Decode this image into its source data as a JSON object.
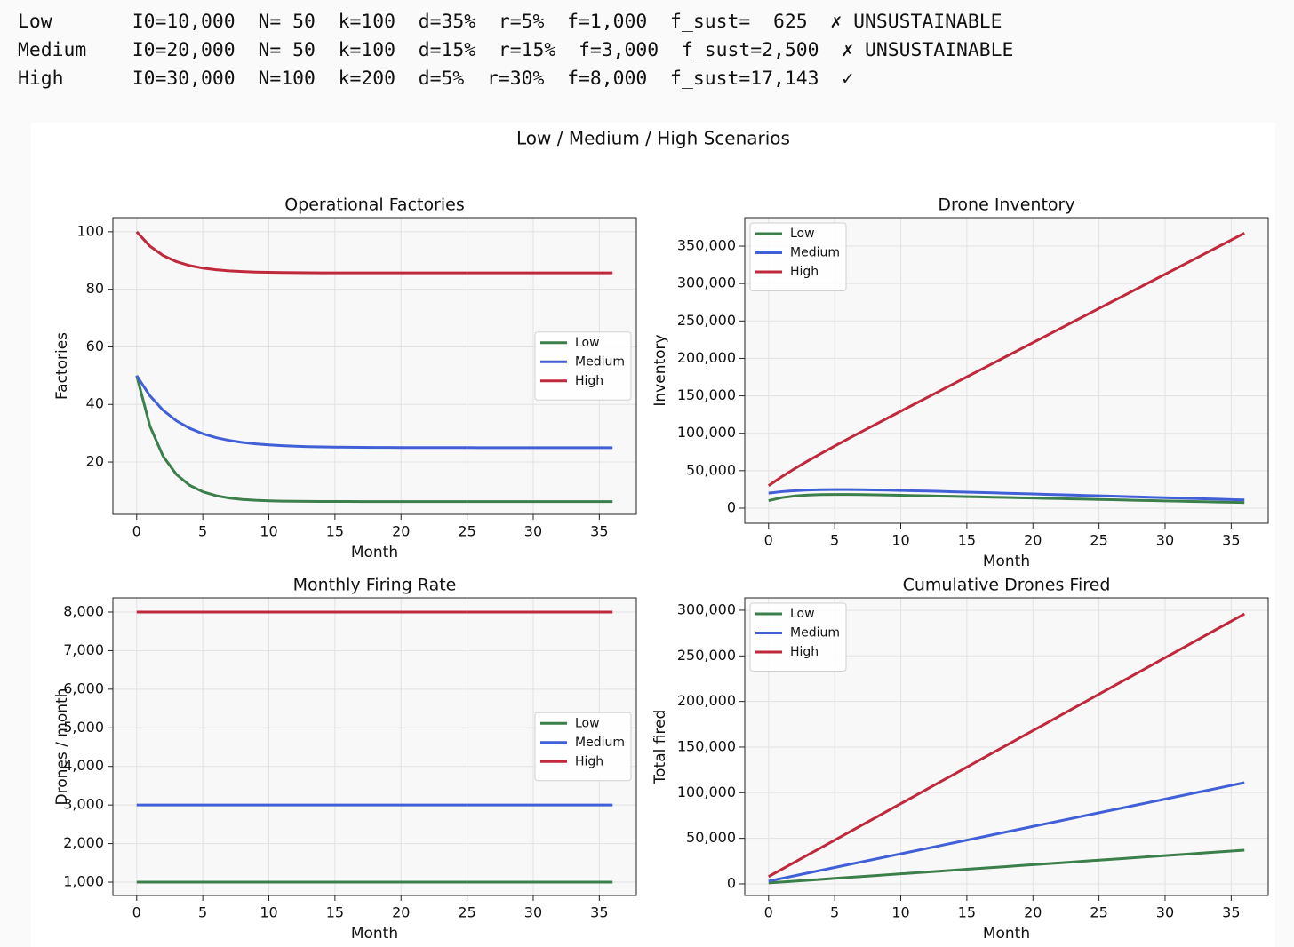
{
  "output_lines": [
    "Low       I0=10,000  N= 50  k=100  d=35%  r=5%  f=1,000  f_sust=  625  ✗ UNSUSTAINABLE",
    "Medium    I0=20,000  N= 50  k=100  d=15%  r=15%  f=3,000  f_sust=2,500  ✗ UNSUSTAINABLE",
    "High      I0=30,000  N=100  k=200  d=5%  r=30%  f=8,000  f_sust=17,143  ✓"
  ],
  "suptitle": "Low / Medium / High Scenarios",
  "chart_data": [
    {
      "type": "line",
      "title": "Operational Factories",
      "x_label": "Month",
      "y_label": "Factories",
      "grid": true,
      "legend": "center right",
      "x": [
        0,
        1,
        2,
        3,
        4,
        5,
        6,
        7,
        8,
        9,
        10,
        11,
        12,
        13,
        14,
        15,
        16,
        17,
        18,
        19,
        20,
        21,
        22,
        23,
        24,
        25,
        26,
        27,
        28,
        29,
        30,
        31,
        32,
        33,
        34,
        35,
        36
      ],
      "xlim": [
        -1.8,
        37.8
      ],
      "xticks": [
        0,
        5,
        10,
        15,
        20,
        25,
        30,
        35
      ],
      "ylim": [
        1.8,
        104.9
      ],
      "yticks": [
        20,
        40,
        60,
        80,
        100
      ],
      "series": [
        {
          "name": "Low",
          "color": "#3b7f4a",
          "values": [
            50,
            32.5,
            22.0,
            15.7,
            11.9,
            9.65,
            8.29,
            7.47,
            6.98,
            6.69,
            6.51,
            6.41,
            6.35,
            6.31,
            6.28,
            6.27,
            6.26,
            6.25,
            6.25,
            6.25,
            6.25,
            6.25,
            6.25,
            6.25,
            6.25,
            6.25,
            6.25,
            6.25,
            6.25,
            6.25,
            6.25,
            6.25,
            6.25,
            6.25,
            6.25,
            6.25,
            6.25
          ]
        },
        {
          "name": "Medium",
          "color": "#4160d8",
          "values": [
            50,
            43.0,
            37.96,
            34.33,
            31.72,
            29.84,
            28.48,
            27.51,
            26.81,
            26.3,
            25.94,
            25.67,
            25.49,
            25.35,
            25.25,
            25.18,
            25.13,
            25.09,
            25.07,
            25.05,
            25.03,
            25.03,
            25.02,
            25.01,
            25.01,
            25.01,
            25.0,
            25.0,
            25.0,
            25.0,
            25.0,
            25.0,
            25.0,
            25.0,
            25.0,
            25.0,
            25.0
          ]
        },
        {
          "name": "High",
          "color": "#c0283c",
          "values": [
            100,
            95.0,
            91.75,
            89.63,
            88.26,
            87.37,
            86.79,
            86.41,
            86.17,
            86.01,
            85.9,
            85.84,
            85.79,
            85.76,
            85.74,
            85.73,
            85.72,
            85.72,
            85.72,
            85.71,
            85.71,
            85.71,
            85.71,
            85.71,
            85.71,
            85.71,
            85.71,
            85.71,
            85.71,
            85.71,
            85.71,
            85.71,
            85.71,
            85.71,
            85.71,
            85.71,
            85.71
          ]
        }
      ]
    },
    {
      "type": "line",
      "title": "Drone Inventory",
      "x_label": "Month",
      "y_label": "Inventory",
      "grid": true,
      "legend": "upper left",
      "x": [
        0,
        1,
        2,
        3,
        4,
        5,
        6,
        7,
        8,
        9,
        10,
        11,
        12,
        13,
        14,
        15,
        16,
        17,
        18,
        19,
        20,
        21,
        22,
        23,
        24,
        25,
        26,
        27,
        28,
        29,
        30,
        31,
        32,
        33,
        34,
        35,
        36
      ],
      "xlim": [
        -1.8,
        37.8
      ],
      "xticks": [
        0,
        5,
        10,
        15,
        20,
        25,
        30,
        35
      ],
      "ylim": [
        -20200,
        388000
      ],
      "yticks": [
        0,
        {
          "value": 50000,
          "label": "50,000"
        },
        {
          "value": 100000,
          "label": "100,000"
        },
        {
          "value": 150000,
          "label": "150,000"
        },
        {
          "value": 200000,
          "label": "200,000"
        },
        {
          "value": 250000,
          "label": "250,000"
        },
        {
          "value": 300000,
          "label": "300,000"
        },
        {
          "value": 350000,
          "label": "350,000"
        }
      ],
      "series": [
        {
          "name": "Low",
          "color": "#3b7f4a",
          "values": [
            10000,
            14000,
            16250,
            17450,
            18020,
            18210,
            18175,
            18004,
            17751,
            17449,
            17118,
            16769,
            16410,
            16045,
            15676,
            15304,
            14931,
            14557,
            14182,
            13807,
            13432,
            13057,
            12682,
            12307,
            11932,
            11557,
            11182,
            10807,
            10432,
            10057,
            9682,
            9307,
            8932,
            8557,
            8182,
            7807,
            7432
          ]
        },
        {
          "name": "Medium",
          "color": "#4160d8",
          "values": [
            20000,
            22000,
            23300,
            24096,
            24529,
            24701,
            24685,
            24533,
            24284,
            23965,
            23595,
            23189,
            22756,
            22305,
            21840,
            21365,
            20883,
            20396,
            19905,
            19412,
            18917,
            18420,
            17923,
            17425,
            16926,
            16427,
            15928,
            15428,
            14928,
            14428,
            13928,
            13428,
            12928,
            12428,
            11928,
            11428,
            10928
          ]
        },
        {
          "name": "High",
          "color": "#c0283c",
          "values": [
            30000,
            42000,
            53000,
            63350,
            73276,
            82928,
            92402,
            101760,
            111042,
            120276,
            129478,
            138658,
            147826,
            156984,
            166136,
            175284,
            184430,
            193574,
            202718,
            211862,
            221004,
            230146,
            239288,
            248430,
            257572,
            266714,
            275856,
            284998,
            294140,
            303282,
            312424,
            321566,
            330708,
            339850,
            348992,
            358134,
            367276
          ]
        }
      ]
    },
    {
      "type": "line",
      "title": "Monthly Firing Rate",
      "x_label": "Month",
      "y_label": "Drones / month",
      "grid": true,
      "legend": "center right",
      "x": [
        0,
        1,
        2,
        3,
        4,
        5,
        6,
        7,
        8,
        9,
        10,
        11,
        12,
        13,
        14,
        15,
        16,
        17,
        18,
        19,
        20,
        21,
        22,
        23,
        24,
        25,
        26,
        27,
        28,
        29,
        30,
        31,
        32,
        33,
        34,
        35,
        36
      ],
      "xlim": [
        -1.8,
        37.8
      ],
      "xticks": [
        0,
        5,
        10,
        15,
        20,
        25,
        30,
        35
      ],
      "ylim": [
        655,
        8368
      ],
      "yticks": [
        {
          "value": 1000,
          "label": "1,000"
        },
        {
          "value": 2000,
          "label": "2,000"
        },
        {
          "value": 3000,
          "label": "3,000"
        },
        {
          "value": 4000,
          "label": "4,000"
        },
        {
          "value": 5000,
          "label": "5,000"
        },
        {
          "value": 6000,
          "label": "6,000"
        },
        {
          "value": 7000,
          "label": "7,000"
        },
        {
          "value": 8000,
          "label": "8,000"
        }
      ],
      "series": [
        {
          "name": "Low",
          "color": "#3b7f4a",
          "values": [
            1000,
            1000,
            1000,
            1000,
            1000,
            1000,
            1000,
            1000,
            1000,
            1000,
            1000,
            1000,
            1000,
            1000,
            1000,
            1000,
            1000,
            1000,
            1000,
            1000,
            1000,
            1000,
            1000,
            1000,
            1000,
            1000,
            1000,
            1000,
            1000,
            1000,
            1000,
            1000,
            1000,
            1000,
            1000,
            1000,
            1000
          ]
        },
        {
          "name": "Medium",
          "color": "#4160d8",
          "values": [
            3000,
            3000,
            3000,
            3000,
            3000,
            3000,
            3000,
            3000,
            3000,
            3000,
            3000,
            3000,
            3000,
            3000,
            3000,
            3000,
            3000,
            3000,
            3000,
            3000,
            3000,
            3000,
            3000,
            3000,
            3000,
            3000,
            3000,
            3000,
            3000,
            3000,
            3000,
            3000,
            3000,
            3000,
            3000,
            3000,
            3000
          ]
        },
        {
          "name": "High",
          "color": "#c0283c",
          "values": [
            8000,
            8000,
            8000,
            8000,
            8000,
            8000,
            8000,
            8000,
            8000,
            8000,
            8000,
            8000,
            8000,
            8000,
            8000,
            8000,
            8000,
            8000,
            8000,
            8000,
            8000,
            8000,
            8000,
            8000,
            8000,
            8000,
            8000,
            8000,
            8000,
            8000,
            8000,
            8000,
            8000,
            8000,
            8000,
            8000,
            8000
          ]
        }
      ]
    },
    {
      "type": "line",
      "title": "Cumulative Drones Fired",
      "x_label": "Month",
      "y_label": "Total fired",
      "grid": true,
      "legend": "upper left",
      "x": [
        0,
        1,
        2,
        3,
        4,
        5,
        6,
        7,
        8,
        9,
        10,
        11,
        12,
        13,
        14,
        15,
        16,
        17,
        18,
        19,
        20,
        21,
        22,
        23,
        24,
        25,
        26,
        27,
        28,
        29,
        30,
        31,
        32,
        33,
        34,
        35,
        36
      ],
      "xlim": [
        -1.8,
        37.8
      ],
      "xticks": [
        0,
        5,
        10,
        15,
        20,
        25,
        30,
        35
      ],
      "ylim": [
        -12700,
        313600
      ],
      "yticks": [
        0,
        {
          "value": 50000,
          "label": "50,000"
        },
        {
          "value": 100000,
          "label": "100,000"
        },
        {
          "value": 150000,
          "label": "150,000"
        },
        {
          "value": 200000,
          "label": "200,000"
        },
        {
          "value": 250000,
          "label": "250,000"
        },
        {
          "value": 300000,
          "label": "300,000"
        }
      ],
      "series": [
        {
          "name": "Low",
          "color": "#3b7f4a",
          "values": [
            1000,
            2000,
            3000,
            4000,
            5000,
            6000,
            7000,
            8000,
            9000,
            10000,
            11000,
            12000,
            13000,
            14000,
            15000,
            16000,
            17000,
            18000,
            19000,
            20000,
            21000,
            22000,
            23000,
            24000,
            25000,
            26000,
            27000,
            28000,
            29000,
            30000,
            31000,
            32000,
            33000,
            34000,
            35000,
            36000,
            37000
          ]
        },
        {
          "name": "Medium",
          "color": "#4160d8",
          "values": [
            3000,
            6000,
            9000,
            12000,
            15000,
            18000,
            21000,
            24000,
            27000,
            30000,
            33000,
            36000,
            39000,
            42000,
            45000,
            48000,
            51000,
            54000,
            57000,
            60000,
            63000,
            66000,
            69000,
            72000,
            75000,
            78000,
            81000,
            84000,
            87000,
            90000,
            93000,
            96000,
            99000,
            102000,
            105000,
            108000,
            111000
          ]
        },
        {
          "name": "High",
          "color": "#c0283c",
          "values": [
            8000,
            16000,
            24000,
            32000,
            40000,
            48000,
            56000,
            64000,
            72000,
            80000,
            88000,
            96000,
            104000,
            112000,
            120000,
            128000,
            136000,
            144000,
            152000,
            160000,
            168000,
            176000,
            184000,
            192000,
            200000,
            208000,
            216000,
            224000,
            232000,
            240000,
            248000,
            256000,
            264000,
            272000,
            280000,
            288000,
            296000
          ]
        }
      ]
    }
  ]
}
